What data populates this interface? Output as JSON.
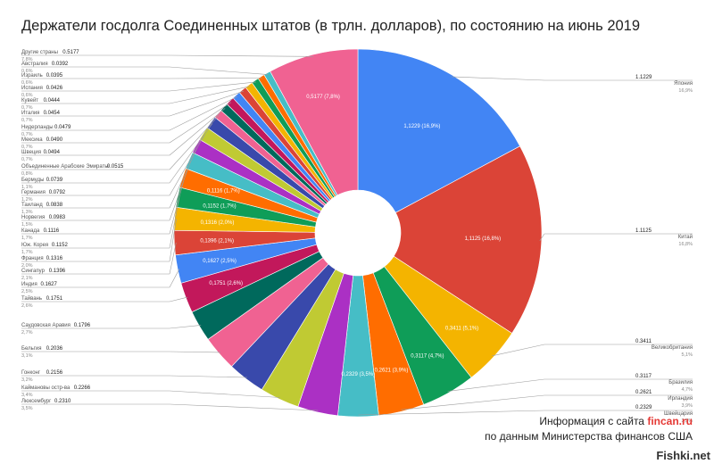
{
  "title": "Держатели госдолга Соединенных штатов (в трлн. долларов), по состоянию на июнь 2019",
  "footer": {
    "line1_prefix": "Информация с сайта",
    "brand": "fincan.ru",
    "line2": "по данным Министерства финансов США"
  },
  "watermark": "Fishki.net",
  "chart_data": {
    "type": "pie",
    "title": "Держатели госдолга Соединенных штатов (в трлн. долларов), по состоянию на июнь 2019",
    "donut": true,
    "slices": [
      {
        "label": "Япония",
        "value": 1.1229,
        "percent": "16,9%",
        "slice_label": "1,1229 (16,9%)",
        "color": "#4285f4"
      },
      {
        "label": "Китай",
        "value": 1.1125,
        "percent": "16,8%",
        "slice_label": "1,1125 (16,8%)",
        "color": "#db4437"
      },
      {
        "label": "Великобритания",
        "value": 0.3411,
        "percent": "5,1%",
        "slice_label": "0,3411 (5,1%)",
        "color": "#f4b400"
      },
      {
        "label": "Бразилия",
        "value": 0.3117,
        "percent": "4,7%",
        "slice_label": "0,3117 (4,7%)",
        "color": "#0f9d58"
      },
      {
        "label": "Ирландия",
        "value": 0.2621,
        "percent": "3,9%",
        "slice_label": "0,2621 (3,9%)",
        "color": "#ff6d00"
      },
      {
        "label": "Швейцария",
        "value": 0.2329,
        "percent": "3,5%",
        "slice_label": "0,2329 (3,5%)",
        "color": "#46bdc6"
      },
      {
        "label": "Люксембург",
        "value": 0.231,
        "percent": "3,5%",
        "slice_label": "",
        "color": "#ab30c4"
      },
      {
        "label": "Каймановы остр-ва",
        "value": 0.2266,
        "percent": "3,4%",
        "slice_label": "",
        "color": "#c0ca33"
      },
      {
        "label": "Гонконг",
        "value": 0.2156,
        "percent": "3,2%",
        "slice_label": "",
        "color": "#3949ab"
      },
      {
        "label": "Бельгия",
        "value": 0.2036,
        "percent": "3,1%",
        "slice_label": "",
        "color": "#f06292"
      },
      {
        "label": "Саудовская Аравия",
        "value": 0.1796,
        "percent": "2,7%",
        "slice_label": "",
        "color": "#00695c"
      },
      {
        "label": "Тайвань",
        "value": 0.1751,
        "percent": "2,6%",
        "slice_label": "0,1751 (2,6%)",
        "color": "#c2185b"
      },
      {
        "label": "Индия",
        "value": 0.1627,
        "percent": "2,5%",
        "slice_label": "0,1627 (2,5%)",
        "color": "#4285f4"
      },
      {
        "label": "Сингапур",
        "value": 0.1396,
        "percent": "2,1%",
        "slice_label": "0,1396 (2,1%)",
        "color": "#db4437"
      },
      {
        "label": "Франция",
        "value": 0.1316,
        "percent": "2,0%",
        "slice_label": "0,1316 (2,0%)",
        "color": "#f4b400"
      },
      {
        "label": "Юж. Корея",
        "value": 0.1152,
        "percent": "1,7%",
        "slice_label": "0,1152 (1,7%)",
        "color": "#0f9d58"
      },
      {
        "label": "Канада",
        "value": 0.1116,
        "percent": "1,7%",
        "slice_label": "0,1116 (1,7%)",
        "color": "#ff6d00"
      },
      {
        "label": "Норвегия",
        "value": 0.0983,
        "percent": "1,5%",
        "slice_label": "",
        "color": "#46bdc6"
      },
      {
        "label": "Таиланд",
        "value": 0.0838,
        "percent": "1,3%",
        "slice_label": "",
        "color": "#ab30c4"
      },
      {
        "label": "Германия",
        "value": 0.0792,
        "percent": "1,2%",
        "slice_label": "",
        "color": "#c0ca33"
      },
      {
        "label": "Бермуды",
        "value": 0.0739,
        "percent": "1,1%",
        "slice_label": "",
        "color": "#3949ab"
      },
      {
        "label": "Объединенные Арабские Эмираты",
        "value": 0.0515,
        "percent": "0,8%",
        "slice_label": "",
        "color": "#f06292"
      },
      {
        "label": "Швеция",
        "value": 0.0494,
        "percent": "0,7%",
        "slice_label": "",
        "color": "#00695c"
      },
      {
        "label": "Мексика",
        "value": 0.049,
        "percent": "0,7%",
        "slice_label": "",
        "color": "#c2185b"
      },
      {
        "label": "Нидерланды",
        "value": 0.0479,
        "percent": "0,7%",
        "slice_label": "",
        "color": "#4285f4"
      },
      {
        "label": "Италия",
        "value": 0.0454,
        "percent": "0,7%",
        "slice_label": "",
        "color": "#db4437"
      },
      {
        "label": "Кувейт",
        "value": 0.0444,
        "percent": "0,7%",
        "slice_label": "",
        "color": "#f4b400"
      },
      {
        "label": "Испания",
        "value": 0.0426,
        "percent": "0,6%",
        "slice_label": "",
        "color": "#0f9d58"
      },
      {
        "label": "Израиль",
        "value": 0.0395,
        "percent": "0,6%",
        "slice_label": "",
        "color": "#ff6d00"
      },
      {
        "label": "Австралия",
        "value": 0.0392,
        "percent": "0,6%",
        "slice_label": "",
        "color": "#46bdc6"
      },
      {
        "label": "Другие страны",
        "value": 0.5177,
        "percent": "7,8%",
        "slice_label": "0,5177 (7,8%)",
        "color": "#f06292"
      }
    ],
    "legend_values": {
      "Япония": "1.1229",
      "Китай": "1.1125",
      "Великобритания": "0.3411",
      "Бразилия": "0.3117",
      "Ирландия": "0.2621",
      "Швейцария": "0.2329",
      "Люксембург": "0.2310",
      "Каймановы остр-ва": "0.2266",
      "Гонконг": "0.2156",
      "Бельгия": "0.2036",
      "Саудовская Аравия": "0.1796",
      "Тайвань": "0.1751",
      "Индия": "0.1627",
      "Сингапур": "0.1396",
      "Франция": "0.1316",
      "Юж. Корея": "0.1152",
      "Канада": "0.1116",
      "Норвегия": "0.0983",
      "Таиланд": "0.0838",
      "Германия": "0.0792",
      "Бермуды": "0.0739",
      "Объединенные Арабские Эмираты": "0.0515",
      "Швеция": "0.0494",
      "Мексика": "0.0490",
      "Нидерланды": "0.0479",
      "Италия": "0.0454",
      "Кувейт": "0.0444",
      "Испания": "0.0426",
      "Израиль": "0.0395",
      "Австралия": "0.0392",
      "Другие страны": "0.5177"
    },
    "legend_placement": "left and right, with leader lines"
  }
}
